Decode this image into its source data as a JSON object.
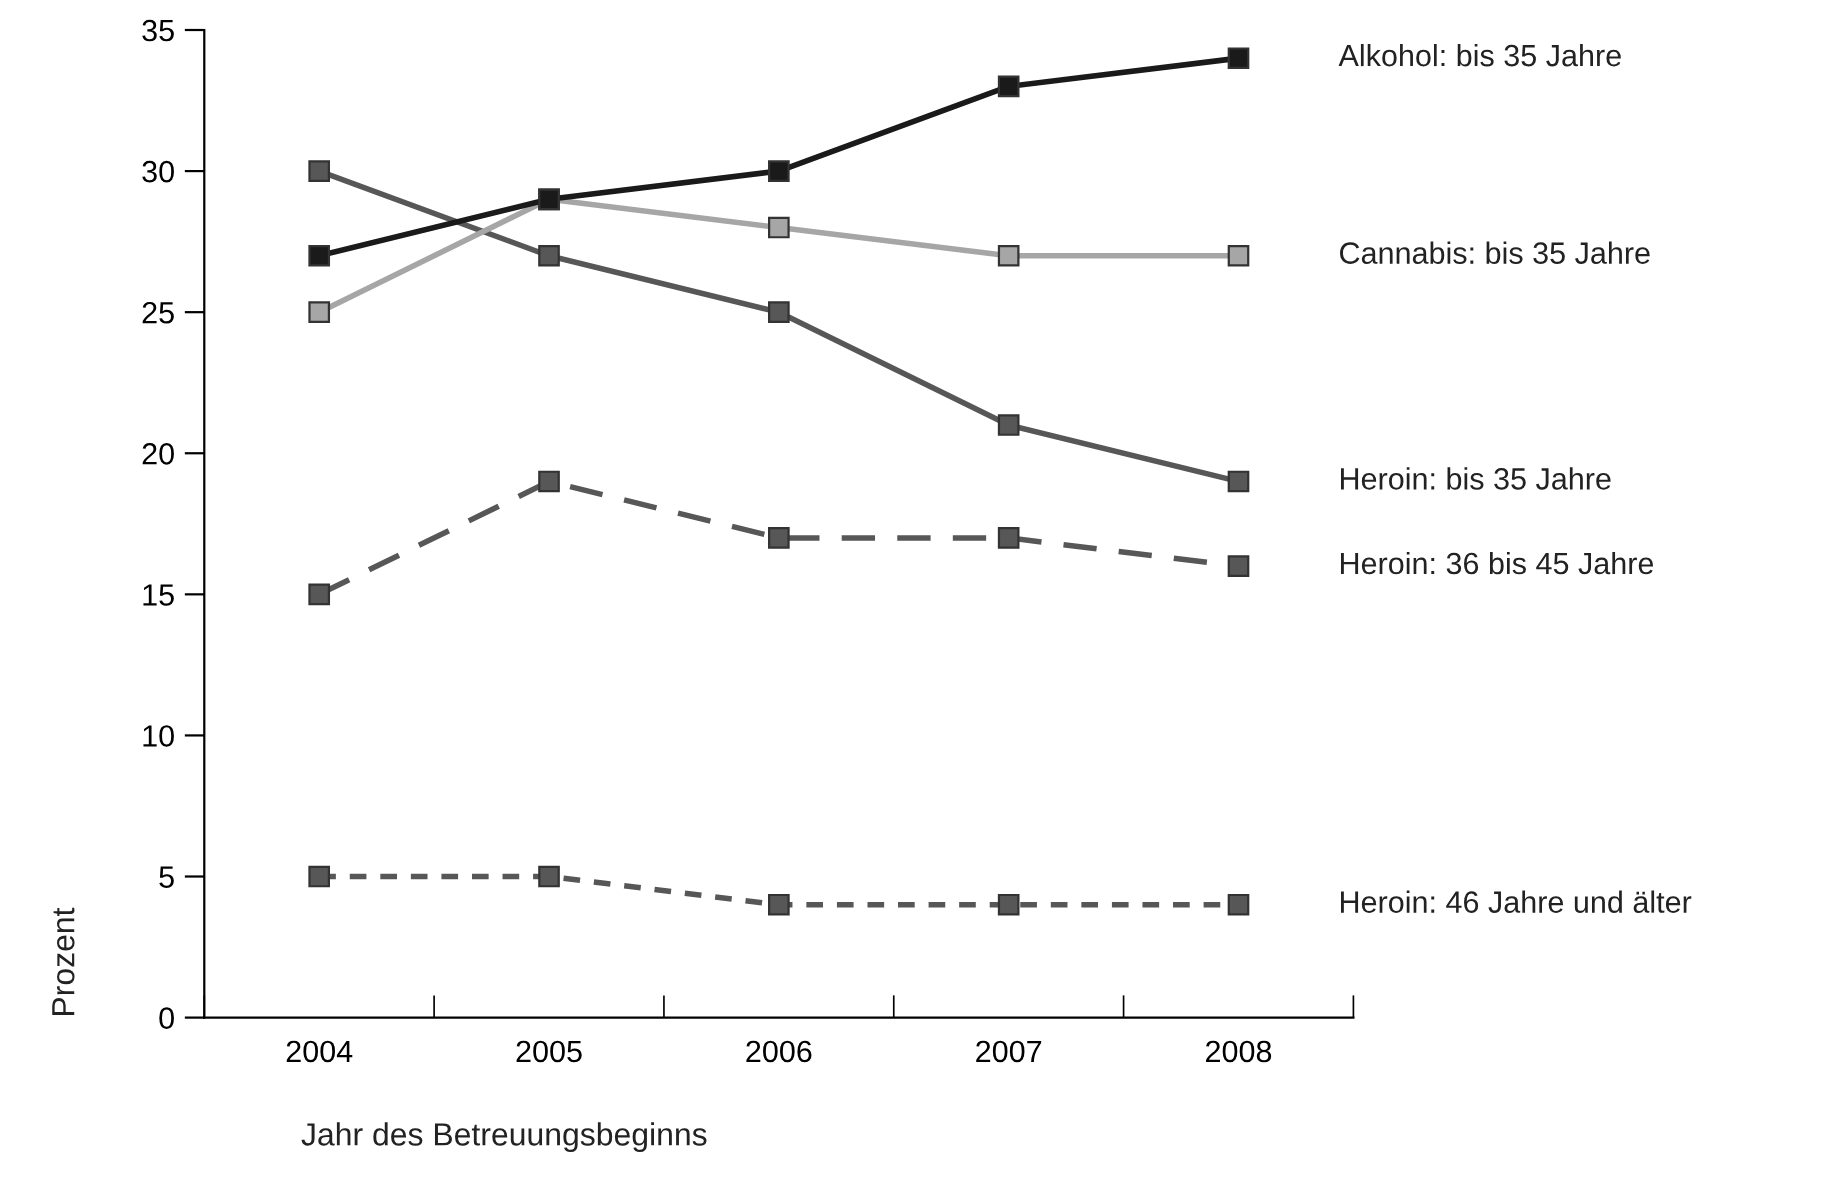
{
  "chart_data": {
    "type": "line",
    "xlabel": "Jahr des Betreuungsbeginns",
    "ylabel": "Prozent",
    "categories": [
      "2004",
      "2005",
      "2006",
      "2007",
      "2008"
    ],
    "series": [
      {
        "name": "Alkohol: bis 35 Jahre",
        "color": "#1a1a1a",
        "values": [
          27,
          29,
          30,
          33,
          34
        ],
        "line_style": "solid"
      },
      {
        "name": "Cannabis: bis 35 Jahre",
        "color": "#a6a6a6",
        "values": [
          25,
          29,
          28,
          27,
          27
        ],
        "line_style": "solid"
      },
      {
        "name": "Heroin: bis 35 Jahre",
        "color": "#575757",
        "values": [
          30,
          27,
          25,
          21,
          19
        ],
        "line_style": "solid"
      },
      {
        "name": "Heroin: 36 bis 45 Jahre",
        "color": "#575757",
        "values": [
          15,
          19,
          17,
          17,
          16
        ],
        "line_style": "dashed"
      },
      {
        "name": "Heroin: 46 Jahre und älter",
        "color": "#575757",
        "values": [
          5,
          5,
          4,
          4,
          4
        ],
        "line_style": "dotted"
      }
    ],
    "ylim": [
      0,
      35
    ],
    "yticks": [
      0,
      5,
      10,
      15,
      20,
      25,
      30,
      35
    ],
    "grid": false,
    "legend": false,
    "marker": "square"
  }
}
